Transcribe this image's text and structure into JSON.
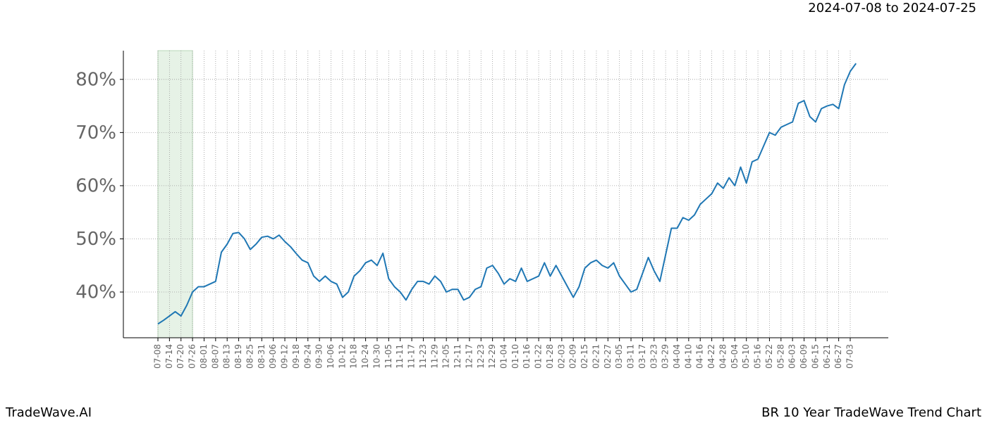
{
  "chart_data": {
    "type": "line",
    "subtitle": "2024-07-08 to 2024-07-25",
    "brand": "TradeWave.AI",
    "title": "BR 10 Year TradeWave Trend Chart",
    "categories": [
      "07-08",
      null,
      "07-14",
      null,
      "07-20",
      null,
      "07-26",
      null,
      "08-01",
      null,
      "08-07",
      null,
      "08-13",
      null,
      "08-19",
      null,
      "08-25",
      null,
      "08-31",
      null,
      "09-06",
      null,
      "09-12",
      null,
      "09-18",
      null,
      "09-24",
      null,
      "09-30",
      null,
      "10-06",
      null,
      "10-12",
      null,
      "10-18",
      null,
      "10-24",
      null,
      "10-30",
      null,
      "11-05",
      null,
      "11-11",
      null,
      "11-17",
      null,
      "11-23",
      null,
      "11-29",
      null,
      "12-05",
      null,
      "12-11",
      null,
      "12-17",
      null,
      "12-23",
      null,
      "12-29",
      null,
      "01-04",
      null,
      "01-10",
      null,
      "01-16",
      null,
      "01-22",
      null,
      "01-28",
      null,
      "02-03",
      null,
      "02-09",
      null,
      "02-15",
      null,
      "02-21",
      null,
      "02-27",
      null,
      "03-05",
      null,
      "03-11",
      null,
      "03-17",
      null,
      "03-23",
      null,
      "03-29",
      null,
      "04-04",
      null,
      "04-10",
      null,
      "04-16",
      null,
      "04-22",
      null,
      "04-28",
      null,
      "05-04",
      null,
      "05-10",
      null,
      "05-16",
      null,
      "05-22",
      null,
      "05-28",
      null,
      "06-03",
      null,
      "06-09",
      null,
      "06-15",
      null,
      "06-21",
      null,
      "06-27",
      null,
      "07-03",
      null
    ],
    "values": [
      34,
      34.7,
      35.5,
      36.3,
      35.5,
      37.5,
      40,
      41,
      41,
      41.5,
      42,
      47.5,
      49,
      51,
      51.2,
      50,
      48,
      49,
      50.3,
      50.5,
      50,
      50.7,
      49.5,
      48.5,
      47.2,
      46,
      45.5,
      43,
      42,
      43,
      42,
      41.5,
      39,
      40,
      43,
      44,
      45.5,
      46,
      45,
      47.3,
      42.5,
      41,
      40,
      38.5,
      40.5,
      42,
      42,
      41.5,
      43,
      42,
      40,
      40.5,
      40.5,
      38.5,
      39,
      40.5,
      41,
      44.5,
      45,
      43.5,
      41.5,
      42.5,
      42,
      44.5,
      42,
      42.5,
      43,
      45.5,
      43,
      45,
      43,
      41,
      39,
      41,
      44.5,
      45.5,
      46,
      45,
      44.5,
      45.5,
      43,
      41.5,
      40,
      40.5,
      43.5,
      46.5,
      44,
      42,
      47,
      52,
      52,
      54,
      53.5,
      54.5,
      56.5,
      57.5,
      58.5,
      60.5,
      59.5,
      61.5,
      60,
      63.5,
      60.5,
      64.5,
      65,
      67.5,
      70,
      69.5,
      71,
      71.5,
      72,
      75.5,
      76,
      73,
      72,
      74.5,
      75,
      75.3,
      74.5,
      79,
      81.5,
      83
    ],
    "color": "#1f77b4",
    "highlight": [
      "07-08",
      "07-26"
    ],
    "highlight_color": "#e6f2e6",
    "ylim": [
      31.4,
      85.4
    ],
    "yticks": [
      {
        "value": 40,
        "label": "40%"
      },
      {
        "value": 50,
        "label": "50%"
      },
      {
        "value": 60,
        "label": "60%"
      },
      {
        "value": 70,
        "label": "70%"
      },
      {
        "value": 80,
        "label": "80%"
      }
    ],
    "grid": true
  }
}
